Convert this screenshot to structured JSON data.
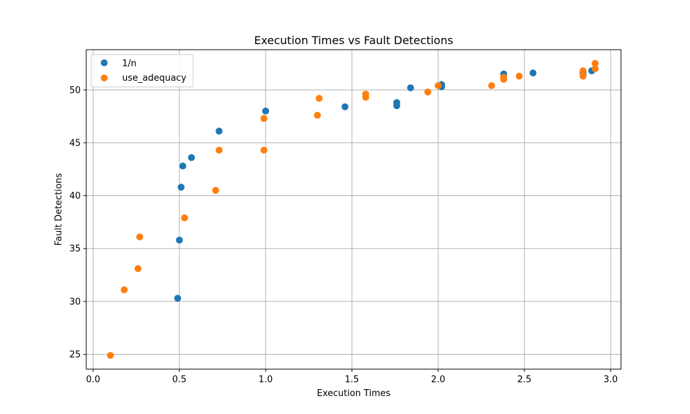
{
  "chart_data": {
    "type": "scatter",
    "title": "Execution Times vs Fault Detections",
    "xlabel": "Execution Times",
    "ylabel": "Fault Detections",
    "xlim": [
      -0.04,
      3.06
    ],
    "ylim": [
      23.6,
      53.8
    ],
    "xticks": [
      0.0,
      0.5,
      1.0,
      1.5,
      2.0,
      2.5,
      3.0
    ],
    "xtick_labels": [
      "0.0",
      "0.5",
      "1.0",
      "1.5",
      "2.0",
      "2.5",
      "3.0"
    ],
    "yticks": [
      25,
      30,
      35,
      40,
      45,
      50
    ],
    "ytick_labels": [
      "25",
      "30",
      "35",
      "40",
      "45",
      "50"
    ],
    "grid": true,
    "legend_position": "top-left",
    "series": [
      {
        "name": "1/n",
        "color": "#1f77b4",
        "points": [
          [
            0.49,
            30.3
          ],
          [
            0.5,
            35.8
          ],
          [
            0.51,
            40.8
          ],
          [
            0.52,
            42.8
          ],
          [
            0.57,
            43.6
          ],
          [
            0.73,
            46.1
          ],
          [
            1.0,
            48.0
          ],
          [
            1.46,
            48.4
          ],
          [
            1.76,
            48.8
          ],
          [
            1.76,
            48.5
          ],
          [
            1.84,
            50.2
          ],
          [
            2.02,
            50.5
          ],
          [
            2.02,
            50.3
          ],
          [
            2.38,
            51.5
          ],
          [
            2.55,
            51.6
          ],
          [
            2.84,
            51.6
          ],
          [
            2.89,
            51.8
          ]
        ]
      },
      {
        "name": "use_adequacy",
        "color": "#ff7f0e",
        "points": [
          [
            0.1,
            24.9
          ],
          [
            0.18,
            31.1
          ],
          [
            0.26,
            33.1
          ],
          [
            0.27,
            36.1
          ],
          [
            0.53,
            37.9
          ],
          [
            0.71,
            40.5
          ],
          [
            0.73,
            44.3
          ],
          [
            0.99,
            44.3
          ],
          [
            0.99,
            47.3
          ],
          [
            1.3,
            47.6
          ],
          [
            1.31,
            49.2
          ],
          [
            1.58,
            49.3
          ],
          [
            1.58,
            49.6
          ],
          [
            1.94,
            49.8
          ],
          [
            2.0,
            50.4
          ],
          [
            2.31,
            50.4
          ],
          [
            2.38,
            51.2
          ],
          [
            2.38,
            51.0
          ],
          [
            2.47,
            51.3
          ],
          [
            2.84,
            51.8
          ],
          [
            2.84,
            51.3
          ],
          [
            2.91,
            52.5
          ],
          [
            2.91,
            52.0
          ]
        ]
      }
    ]
  }
}
